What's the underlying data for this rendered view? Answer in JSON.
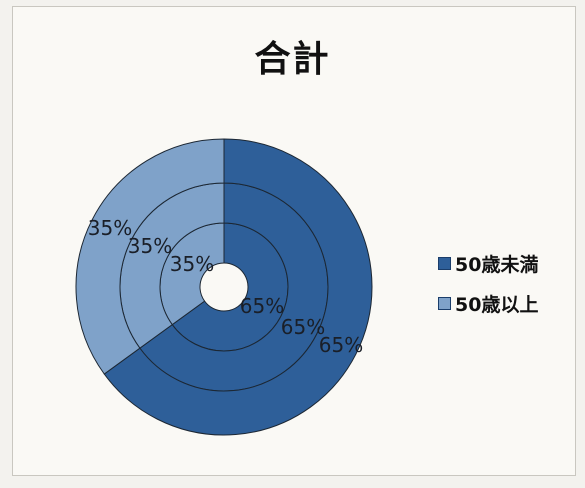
{
  "chart_data": {
    "type": "pie",
    "subtype": "concentric-donut",
    "title": "合計",
    "categories": [
      "50歳未満",
      "50歳以上"
    ],
    "series": [
      {
        "values": [
          65,
          35
        ],
        "labels": [
          "65%",
          "35%"
        ]
      },
      {
        "values": [
          65,
          35
        ],
        "labels": [
          "65%",
          "35%"
        ]
      },
      {
        "values": [
          65,
          35
        ],
        "labels": [
          "65%",
          "35%"
        ]
      }
    ],
    "colors": [
      "#2e5f99",
      "#7fa2c9"
    ],
    "legend_position": "right"
  }
}
